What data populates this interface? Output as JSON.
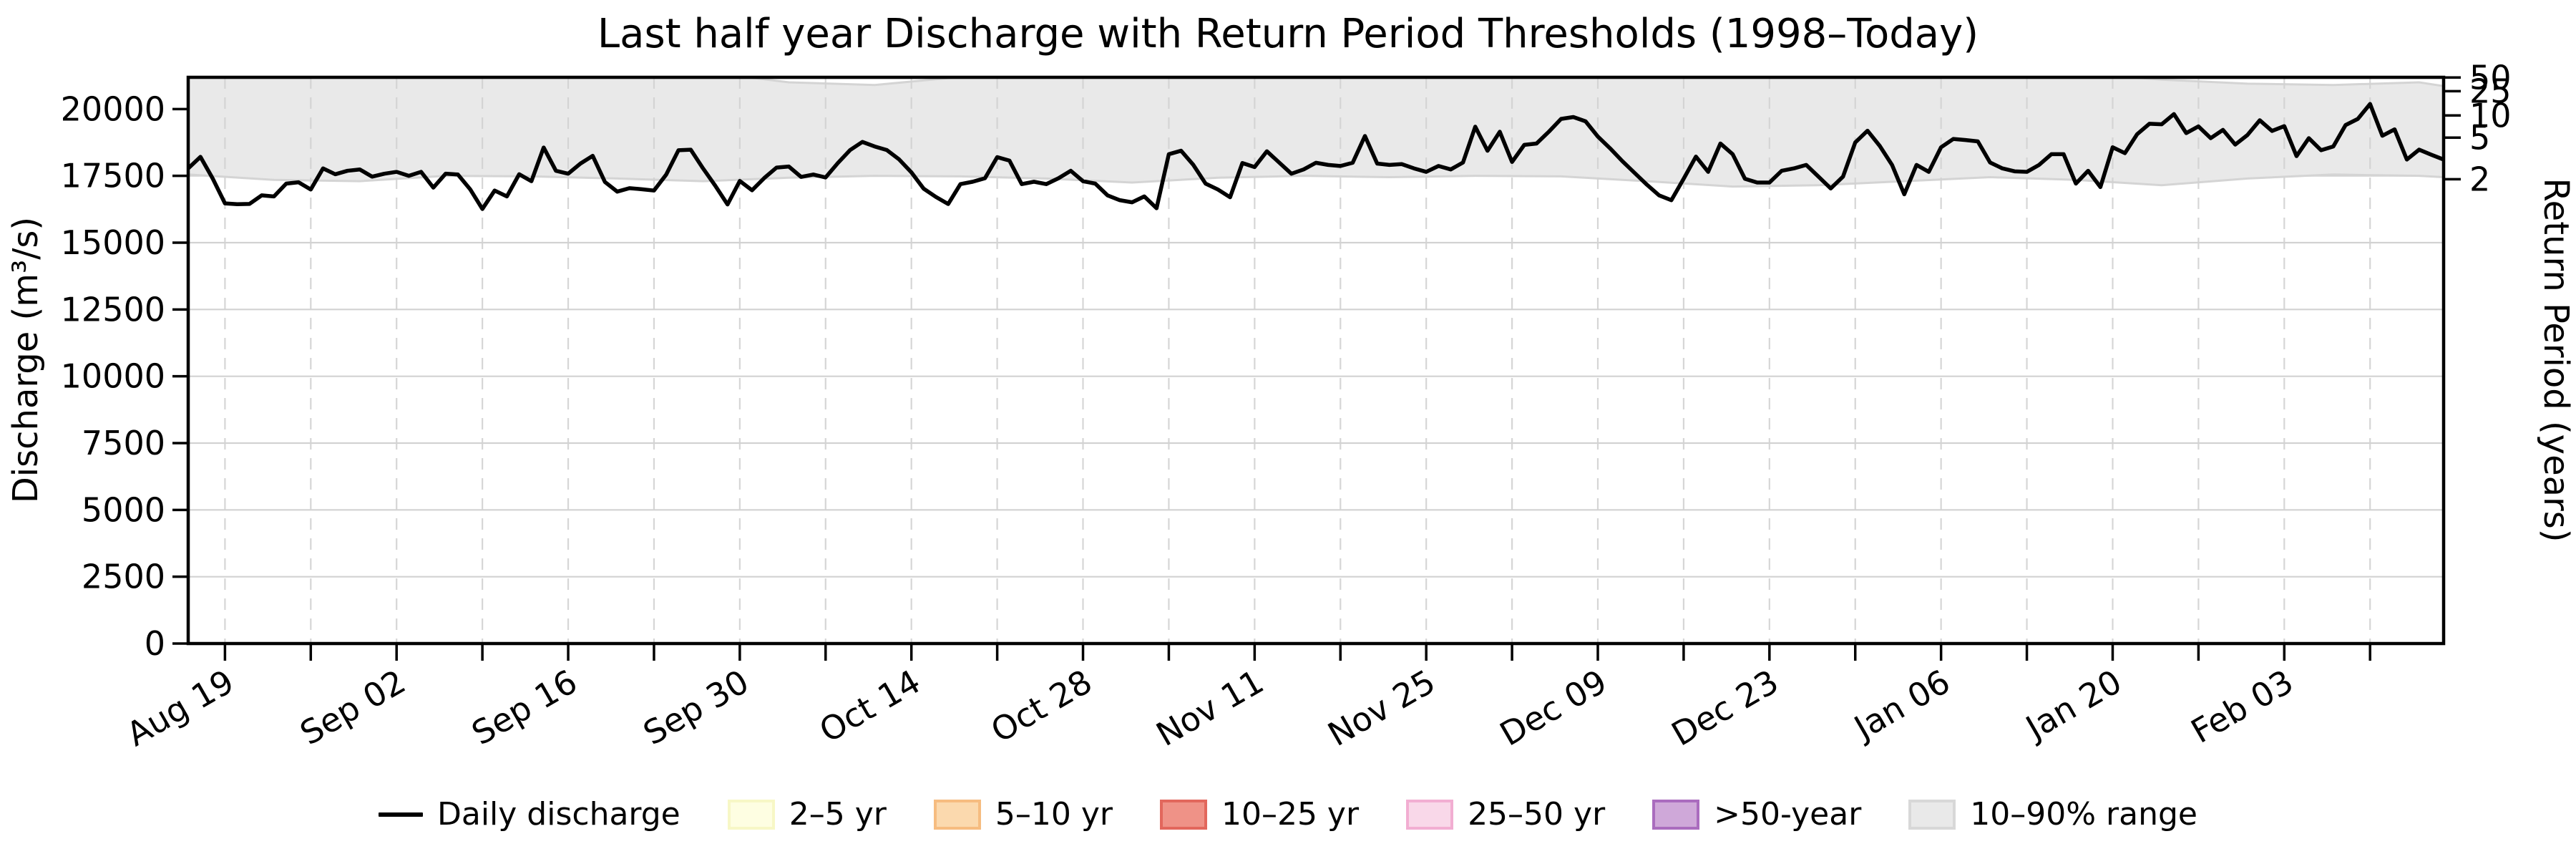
{
  "title": "Last half year Discharge with Return Period Thresholds (1998–Today)",
  "axes": {
    "y_left": {
      "label": "Discharge (m³/s)",
      "ticks": [
        0,
        2500,
        5000,
        7500,
        10000,
        12500,
        15000,
        17500,
        20000
      ],
      "min": 0,
      "max": 21186
    },
    "y_right": {
      "label": "Return Period (years)",
      "ticks": [
        {
          "label": "2",
          "discharge": 17375
        },
        {
          "label": "5",
          "discharge": 18930
        },
        {
          "label": "10",
          "discharge": 19760
        },
        {
          "label": "25",
          "discharge": 20670
        },
        {
          "label": "50",
          "discharge": 21180
        }
      ]
    },
    "x": {
      "major_ticks": [
        {
          "day": 3,
          "label": "Aug 19"
        },
        {
          "day": 17,
          "label": "Sep 02"
        },
        {
          "day": 31,
          "label": "Sep 16"
        },
        {
          "day": 45,
          "label": "Sep 30"
        },
        {
          "day": 59,
          "label": "Oct 14"
        },
        {
          "day": 73,
          "label": "Oct 28"
        },
        {
          "day": 87,
          "label": "Nov 11"
        },
        {
          "day": 101,
          "label": "Nov 25"
        },
        {
          "day": 115,
          "label": "Dec 09"
        },
        {
          "day": 129,
          "label": "Dec 23"
        },
        {
          "day": 143,
          "label": "Jan 06"
        },
        {
          "day": 157,
          "label": "Jan 20"
        },
        {
          "day": 171,
          "label": "Feb 03"
        }
      ],
      "minor_tick_days": [
        10,
        24,
        38,
        52,
        66,
        80,
        94,
        108,
        122,
        136,
        150,
        164,
        178
      ]
    }
  },
  "legend": {
    "items": [
      {
        "label": "Daily discharge",
        "type": "line",
        "color": "#000000"
      },
      {
        "label": "2–5 yr",
        "type": "patch",
        "fill": "#fefee2",
        "edge": "#f7f7c6"
      },
      {
        "label": "5–10 yr",
        "type": "patch",
        "fill": "#fbd9ae",
        "edge": "#f6bc80"
      },
      {
        "label": "10–25 yr",
        "type": "patch",
        "fill": "#ef9287",
        "edge": "#e2675c"
      },
      {
        "label": "25–50 yr",
        "type": "patch",
        "fill": "#f9d8e9",
        "edge": "#f2aed2"
      },
      {
        "label": ">50-year",
        "type": "patch",
        "fill": "#cfa8d9",
        "edge": "#aa6cbe"
      },
      {
        "label": "10–90% range",
        "type": "patch",
        "fill": "#e9e9e9",
        "edge": "#d8d8d8"
      }
    ]
  },
  "colors": {
    "line": "#000000",
    "band_fill": "#e9e9e9",
    "band_edge": "#d4d4d4",
    "grid": "#d2d2d2",
    "spine": "#000000"
  },
  "chart_data": {
    "type": "line",
    "title": "Last half year Discharge with Return Period Thresholds (1998–Today)",
    "xlabel": "",
    "ylabel": "Discharge (m³/s)",
    "y2label": "Return Period (years)",
    "cadence": "daily",
    "x_start_date": "Aug 16",
    "x_end_date": "Feb 16",
    "n_points": 185,
    "ylim": [
      0,
      21186
    ],
    "grid": true,
    "legend_position": "bottom-center",
    "series": [
      {
        "name": "Daily discharge",
        "values": [
          17780,
          18210,
          17400,
          16470,
          16440,
          16450,
          16770,
          16730,
          17210,
          17260,
          16990,
          17780,
          17560,
          17690,
          17740,
          17470,
          17580,
          17650,
          17500,
          17650,
          17060,
          17580,
          17550,
          17000,
          16260,
          16950,
          16730,
          17560,
          17300,
          18560,
          17690,
          17580,
          17960,
          18250,
          17270,
          16910,
          17040,
          17000,
          16950,
          17550,
          18460,
          18480,
          17780,
          17130,
          16430,
          17310,
          16960,
          17420,
          17810,
          17850,
          17460,
          17550,
          17440,
          17980,
          18465,
          18770,
          18600,
          18465,
          18115,
          17630,
          17020,
          16710,
          16445,
          17190,
          17280,
          17410,
          18200,
          18070,
          17190,
          17280,
          17190,
          17410,
          17690,
          17300,
          17210,
          16770,
          16590,
          16510,
          16730,
          16290,
          18310,
          18440,
          17910,
          17210,
          16990,
          16700,
          17980,
          17830,
          18420,
          18000,
          17580,
          17740,
          17990,
          17910,
          17870,
          17990,
          18990,
          17960,
          17910,
          17940,
          17780,
          17650,
          17870,
          17740,
          18000,
          19340,
          18440,
          19150,
          18020,
          18660,
          18710,
          19150,
          19630,
          19700,
          19540,
          18970,
          18530,
          18050,
          17610,
          17170,
          16770,
          16590,
          17390,
          18220,
          17650,
          18710,
          18310,
          17390,
          17250,
          17250,
          17690,
          17780,
          17910,
          17470,
          17030,
          17470,
          18750,
          19190,
          18620,
          17910,
          16810,
          17910,
          17650,
          18570,
          18880,
          18840,
          18790,
          18000,
          17780,
          17670,
          17650,
          17910,
          18310,
          18310,
          17210,
          17690,
          17080,
          18570,
          18350,
          19060,
          19450,
          19430,
          19810,
          19100,
          19350,
          18910,
          19220,
          18670,
          19030,
          19580,
          19180,
          19360,
          18240,
          18910,
          18460,
          18600,
          19400,
          19630,
          20190,
          19000,
          19240,
          18110,
          18480,
          18290,
          18110
        ]
      }
    ],
    "band_10_90": {
      "name": "10–90% range",
      "day_indices": [
        0,
        7,
        14,
        21,
        28,
        35,
        42,
        49,
        56,
        63,
        70,
        77,
        84,
        91,
        98,
        105,
        112,
        119,
        126,
        133,
        140,
        147,
        154,
        161,
        168,
        175,
        182,
        184
      ],
      "lower": [
        17550,
        17350,
        17300,
        17500,
        17480,
        17400,
        17300,
        17430,
        17500,
        17480,
        17400,
        17250,
        17430,
        17500,
        17450,
        17500,
        17480,
        17300,
        17100,
        17150,
        17300,
        17450,
        17350,
        17150,
        17400,
        17550,
        17500,
        17450
      ],
      "upper": [
        21400,
        21350,
        21400,
        21400,
        21300,
        21350,
        21400,
        21000,
        20900,
        21200,
        21350,
        21400,
        21400,
        21300,
        21350,
        21400,
        21400,
        21350,
        21300,
        21350,
        21400,
        21400,
        21350,
        21100,
        20950,
        20900,
        21000,
        20860
      ]
    },
    "return_period_thresholds": {
      "2_yr": 17375,
      "5_yr": 18930,
      "10_yr": 19760,
      "25_yr": 20670,
      "50_yr": 21180
    }
  }
}
